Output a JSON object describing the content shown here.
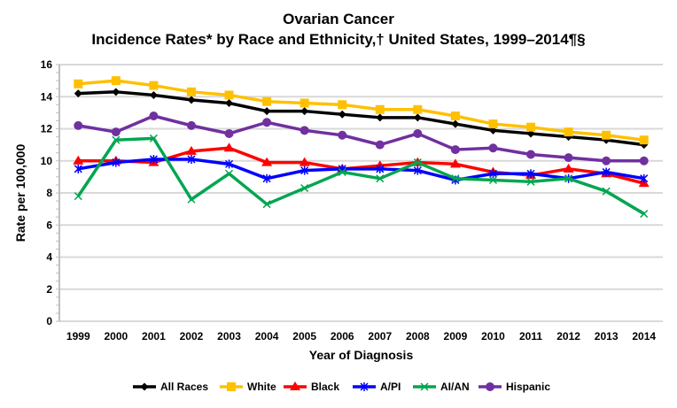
{
  "chart_data": {
    "type": "line",
    "title": "Ovarian Cancer",
    "subtitle": "Incidence Rates* by Race and Ethnicity,† United States, 1999–2014¶§",
    "xlabel": "Year of Diagnosis",
    "ylabel": "Rate per 100,000",
    "ylim": [
      0,
      16
    ],
    "yticks": [
      "0",
      "2",
      "4",
      "6",
      "8",
      "10",
      "12",
      "14",
      "16"
    ],
    "categories": [
      "1999",
      "2000",
      "2001",
      "2002",
      "2003",
      "2004",
      "2005",
      "2006",
      "2007",
      "2008",
      "2009",
      "2010",
      "2011",
      "2012",
      "2013",
      "2014"
    ],
    "grid": true,
    "legend": "bottom",
    "series": [
      {
        "name": "All Races",
        "color": "#000000",
        "marker": "diamond",
        "values": [
          14.2,
          14.3,
          14.1,
          13.8,
          13.6,
          13.1,
          13.1,
          12.9,
          12.7,
          12.7,
          12.3,
          11.9,
          11.7,
          11.5,
          11.3,
          11.0
        ]
      },
      {
        "name": "White",
        "color": "#FFC000",
        "marker": "square",
        "values": [
          14.8,
          15.0,
          14.7,
          14.3,
          14.1,
          13.7,
          13.6,
          13.5,
          13.2,
          13.2,
          12.8,
          12.3,
          12.1,
          11.8,
          11.6,
          11.3
        ]
      },
      {
        "name": "Black",
        "color": "#FF0000",
        "marker": "triangle",
        "values": [
          10.0,
          10.0,
          9.9,
          10.6,
          10.8,
          9.9,
          9.9,
          9.5,
          9.7,
          9.9,
          9.8,
          9.3,
          9.1,
          9.5,
          9.2,
          8.6
        ]
      },
      {
        "name": "A/PI",
        "color": "#0000FF",
        "marker": "star",
        "values": [
          9.5,
          9.9,
          10.1,
          10.1,
          9.8,
          8.9,
          9.4,
          9.5,
          9.5,
          9.4,
          8.8,
          9.2,
          9.2,
          8.9,
          9.3,
          8.9
        ]
      },
      {
        "name": "AI/AN",
        "color": "#00A650",
        "marker": "x",
        "values": [
          7.8,
          11.3,
          11.4,
          7.6,
          9.2,
          7.3,
          8.3,
          9.3,
          8.9,
          9.9,
          8.9,
          8.8,
          8.7,
          8.9,
          8.1,
          6.7
        ]
      },
      {
        "name": "Hispanic",
        "color": "#7030A0",
        "marker": "circle",
        "values": [
          12.2,
          11.8,
          12.8,
          12.2,
          11.7,
          12.4,
          11.9,
          11.6,
          11.0,
          11.7,
          10.7,
          10.8,
          10.4,
          10.2,
          10.0,
          10.0
        ]
      }
    ]
  }
}
